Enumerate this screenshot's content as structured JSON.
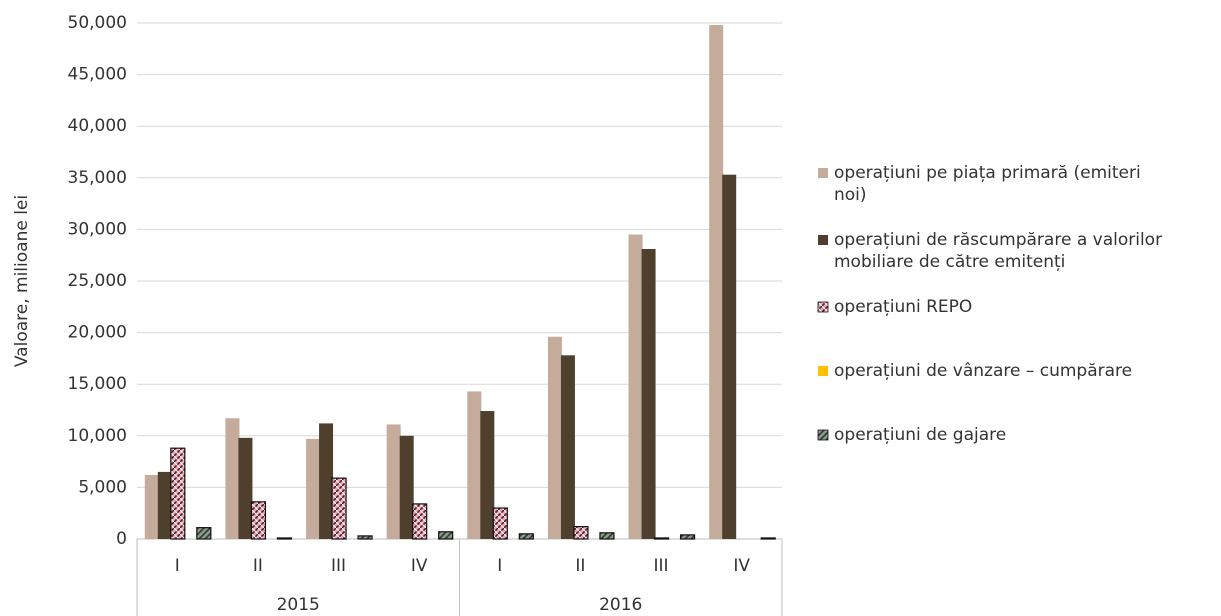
{
  "chart_data": {
    "type": "bar",
    "y_label": "Valoare, milioane lei",
    "categories": [
      "I",
      "II",
      "III",
      "IV",
      "I",
      "II",
      "III",
      "IV"
    ],
    "groups": [
      "2015",
      "2016"
    ],
    "ylim": [
      0,
      50000
    ],
    "yticks": [
      0,
      {
        "value": 5000,
        "label": "5,000"
      },
      {
        "value": 10000,
        "label": "10,000"
      },
      {
        "value": 15000,
        "label": "15,000"
      },
      {
        "value": 20000,
        "label": "20,000"
      },
      {
        "value": 25000,
        "label": "25,000"
      },
      {
        "value": 30000,
        "label": "30,000"
      },
      {
        "value": 35000,
        "label": "35,000"
      },
      {
        "value": 40000,
        "label": "40,000"
      },
      {
        "value": 45000,
        "label": "45,000"
      },
      {
        "value": 50000,
        "label": "50,000"
      }
    ],
    "grid": true,
    "legend": "right",
    "series": [
      {
        "name": "operațiuni  pe piața primară (emiteri noi)",
        "color": "#c4ab9b",
        "values": [
          6200,
          11700,
          9700,
          11100,
          14300,
          19600,
          29500,
          49800
        ]
      },
      {
        "name": "operațiuni de răscumpărare a valorilor mobiliare de către emitenți",
        "color": "#4f3f2d",
        "values": [
          6500,
          9800,
          11200,
          10000,
          12400,
          17800,
          28100,
          35300
        ]
      },
      {
        "name": "operațiuni REPO",
        "color": "#e9a6b4",
        "pattern": "crosshatch",
        "values": [
          8800,
          3600,
          5900,
          3400,
          3000,
          1200,
          100,
          0
        ]
      },
      {
        "name": "operațiuni de vânzare – cumpărare",
        "color": "#ffc000",
        "values": [
          0,
          0,
          0,
          0,
          0,
          0,
          0,
          0
        ]
      },
      {
        "name": "operațiuni de gajare",
        "color": "#8a9a8a",
        "pattern": "diagonal",
        "values": [
          1100,
          100,
          300,
          700,
          500,
          600,
          400,
          100
        ]
      }
    ]
  }
}
